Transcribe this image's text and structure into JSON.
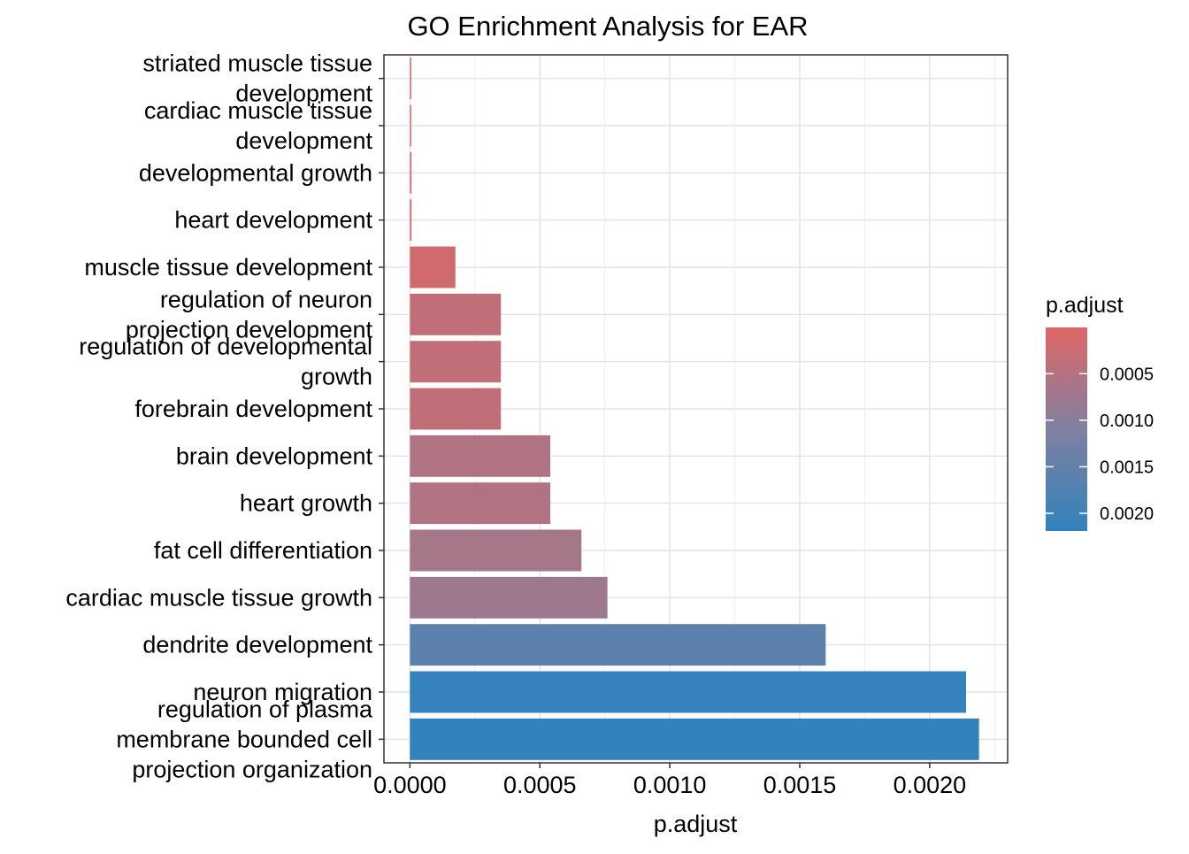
{
  "chart_data": {
    "type": "bar",
    "orientation": "horizontal",
    "title": "GO Enrichment Analysis for EAR",
    "xlabel": "p.adjust",
    "ylabel": "",
    "xlim": [
      -0.0001,
      0.0023
    ],
    "x_ticks": [
      {
        "value": 0.0,
        "label": "0.0000"
      },
      {
        "value": 0.0005,
        "label": "0.0005"
      },
      {
        "value": 0.001,
        "label": "0.0010"
      },
      {
        "value": 0.0015,
        "label": "0.0015"
      },
      {
        "value": 0.002,
        "label": "0.0020"
      }
    ],
    "grid": true,
    "bars": [
      {
        "label": [
          "striated muscle tissue",
          "development"
        ],
        "value": 3e-06,
        "color_value": 3e-06
      },
      {
        "label": [
          "cardiac muscle tissue",
          "development"
        ],
        "value": 5e-06,
        "color_value": 5e-06
      },
      {
        "label": [
          "developmental growth"
        ],
        "value": 6e-06,
        "color_value": 6e-06
      },
      {
        "label": [
          "heart development"
        ],
        "value": 6e-06,
        "color_value": 6e-06
      },
      {
        "label": [
          "muscle tissue development"
        ],
        "value": 0.000175,
        "color_value": 0.000175
      },
      {
        "label": [
          "regulation of neuron",
          "projection development"
        ],
        "value": 0.00035,
        "color_value": 0.00035
      },
      {
        "label": [
          "regulation of developmental",
          "growth"
        ],
        "value": 0.00035,
        "color_value": 0.00035
      },
      {
        "label": [
          "forebrain development"
        ],
        "value": 0.00035,
        "color_value": 0.00035
      },
      {
        "label": [
          "brain development"
        ],
        "value": 0.00054,
        "color_value": 0.00054
      },
      {
        "label": [
          "heart growth"
        ],
        "value": 0.00054,
        "color_value": 0.00054
      },
      {
        "label": [
          "fat cell differentiation"
        ],
        "value": 0.00066,
        "color_value": 0.00066
      },
      {
        "label": [
          "cardiac muscle tissue growth"
        ],
        "value": 0.00076,
        "color_value": 0.00076
      },
      {
        "label": [
          "dendrite development"
        ],
        "value": 0.0016,
        "color_value": 0.0016
      },
      {
        "label": [
          "neuron migration"
        ],
        "value": 0.00214,
        "color_value": 0.00214
      },
      {
        "label": [
          "regulation of plasma",
          "membrane bounded cell",
          "projection organization"
        ],
        "value": 0.00219,
        "color_value": 0.00219
      }
    ],
    "legend": {
      "title": "p.adjust",
      "position": "right",
      "color_low": "#E06666",
      "color_mid": "#8080A0",
      "color_high": "#3182BD",
      "min": 3e-06,
      "max": 0.00219,
      "ticks": [
        {
          "value": 0.0005,
          "label": "0.0005"
        },
        {
          "value": 0.001,
          "label": "0.0010"
        },
        {
          "value": 0.0015,
          "label": "0.0015"
        },
        {
          "value": 0.002,
          "label": "0.0020"
        }
      ]
    }
  }
}
